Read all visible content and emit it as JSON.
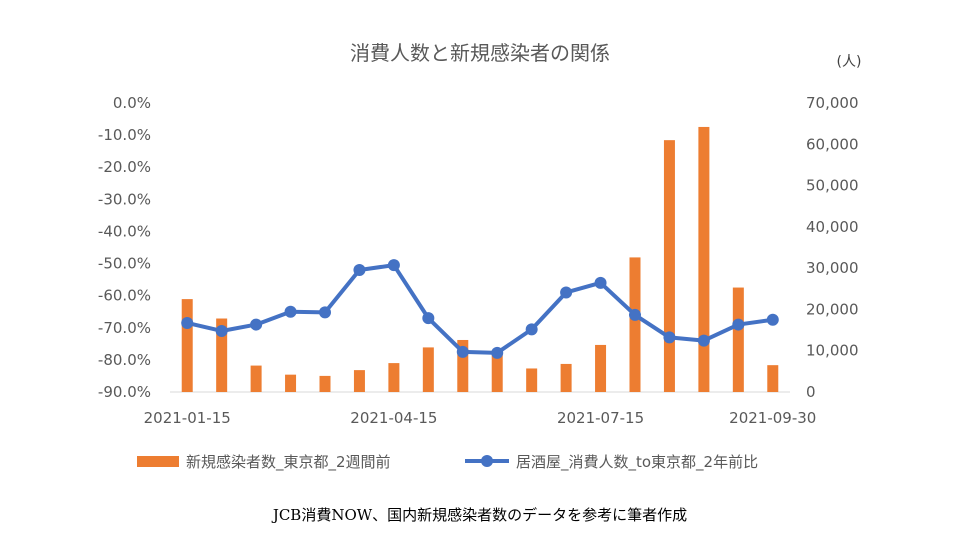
{
  "chart_data": {
    "type": "bar+line",
    "title": "消費人数と新規感染者の関係",
    "left_axis": {
      "ticks": [
        "0.0%",
        "-10.0%",
        "-20.0%",
        "-30.0%",
        "-40.0%",
        "-50.0%",
        "-60.0%",
        "-70.0%",
        "-80.0%",
        "-90.0%"
      ],
      "range": [
        -90,
        0
      ]
    },
    "right_axis": {
      "unit": "(人)",
      "ticks": [
        "70,000",
        "60,000",
        "50,000",
        "40,000",
        "30,000",
        "20,000",
        "10,000",
        "0"
      ],
      "range": [
        0,
        70000
      ]
    },
    "x_tick_labels": [
      "2021-01-15",
      "2021-04-15",
      "2021-07-15",
      "2021-09-30"
    ],
    "x_tick_indices": [
      0,
      6,
      12,
      17
    ],
    "series": [
      {
        "name": "新規感染者数_東京都_2週間前",
        "type": "bar",
        "axis": "right",
        "color": "#ED7D31",
        "values": [
          22500,
          17800,
          6400,
          4200,
          3900,
          5300,
          7000,
          10800,
          12600,
          9900,
          5700,
          6800,
          11400,
          32600,
          61000,
          64200,
          25300,
          6500
        ]
      },
      {
        "name": "居酒屋_消費人数_to東京都_2年前比",
        "type": "line",
        "axis": "left",
        "color": "#4472C4",
        "values": [
          -68.5,
          -71.0,
          -69.0,
          -65.0,
          -65.2,
          -52.0,
          -50.5,
          -67.0,
          -77.5,
          -77.8,
          -70.5,
          -59.0,
          -56.0,
          -66.0,
          -73.0,
          -74.0,
          -69.0,
          -67.5
        ]
      }
    ],
    "legend_position": "bottom"
  },
  "source_note": "JCB消費NOW、国内新規感染者数のデータを参考に筆者作成"
}
